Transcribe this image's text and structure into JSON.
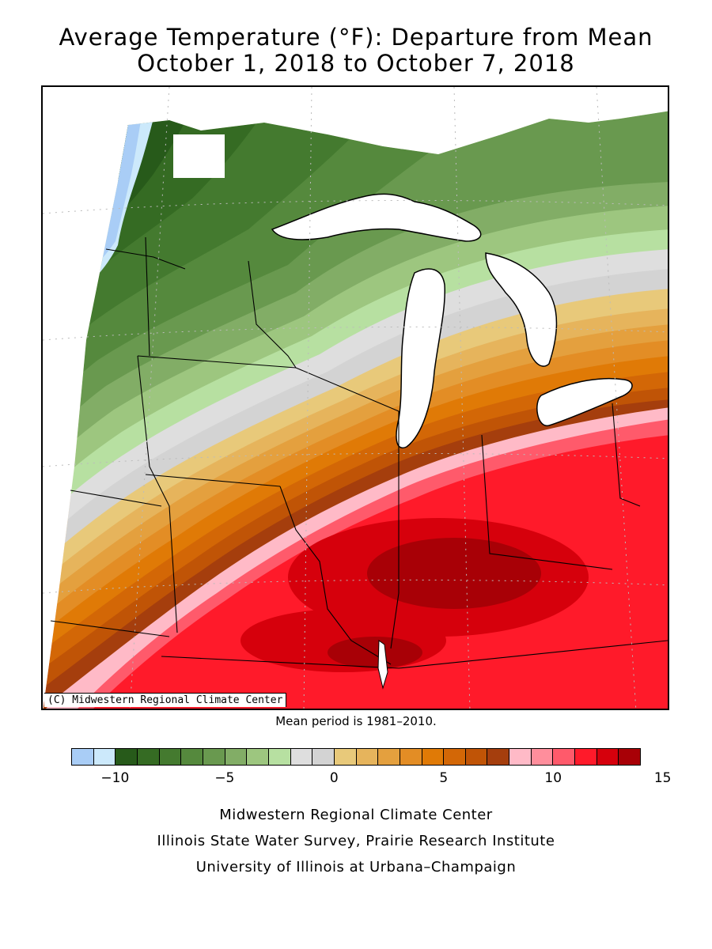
{
  "title": {
    "line1": "Average Temperature (°F): Departure from Mean",
    "line2": "October 1, 2018 to October 7, 2018"
  },
  "map": {
    "copyright": "(C) Midwestern Regional Climate Center",
    "note": "Mean period is 1981–2010."
  },
  "legend": {
    "colors": [
      "#a9cdf6",
      "#cce9fb",
      "#275a1a",
      "#356b23",
      "#447a2f",
      "#55893d",
      "#69994f",
      "#82ad66",
      "#9dc67f",
      "#b7e0a1",
      "#dedede",
      "#d3d3d3",
      "#e8c97a",
      "#e6b45c",
      "#e4a03e",
      "#e38d25",
      "#e07a06",
      "#d36706",
      "#c05406",
      "#a53e0d",
      "#ffbac7",
      "#ff8e9c",
      "#ff5a6b",
      "#ff1a2a",
      "#d6000c",
      "#a80006"
    ],
    "ticks": [
      "−10",
      "−5",
      "0",
      "5",
      "10",
      "15"
    ]
  },
  "credits": {
    "line1": "Midwestern Regional Climate Center",
    "line2": "Illinois State Water Survey, Prairie Research Institute",
    "line3": "University of Illinois at Urbana–Champaign"
  }
}
